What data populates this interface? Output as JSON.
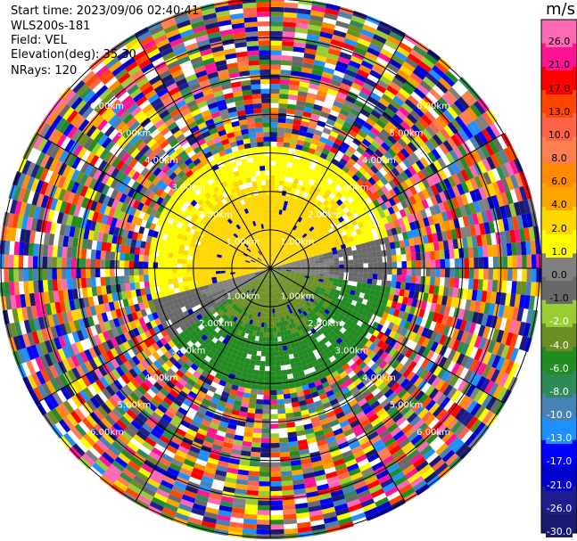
{
  "header": {
    "start_time": "Start time: 2023/09/06 02:40:41",
    "instrument": "WLS200s-181",
    "field": "Field: VEL",
    "elevation": "Elevation(deg): 35.30",
    "nrays": "NRays: 120"
  },
  "colorbar": {
    "unit": "m/s",
    "colors": [
      "#191970",
      "#1e1e8c",
      "#0000cd",
      "#0000ff",
      "#1e90ff",
      "#4682b4",
      "#2e8b57",
      "#228b22",
      "#6b8e23",
      "#9acd32",
      "#696969",
      "#808080",
      "#ffff00",
      "#ffd700",
      "#ffa500",
      "#ff8c00",
      "#ff7f50",
      "#ff6347",
      "#ff4500",
      "#ff0000",
      "#ff1493",
      "#ff69b4"
    ],
    "labels": [
      "-30.0",
      "-26.0",
      "-21.0",
      "-17.0",
      "-13.0",
      "-10.0",
      "-8.0",
      "-6.0",
      "-4.0",
      "-2.0",
      "-1.0",
      "0.0",
      "1.0",
      "2.0",
      "4.0",
      "6.0",
      "8.0",
      "10.0",
      "13.0",
      "17.0",
      "21.0",
      "26.0"
    ]
  },
  "chart_data": {
    "type": "ppi-polar",
    "field": "VEL",
    "nrays": 120,
    "max_range_km": 7,
    "range_rings_km": [
      1,
      2,
      3,
      4,
      5,
      6,
      7
    ],
    "ring_labels": [
      "1.00km",
      "2.00km",
      "3.00km",
      "4.00km",
      "5.00km",
      "6.00km"
    ],
    "clean_range_km": 3.2,
    "sectors": [
      {
        "az_start": 255,
        "az_end": 360,
        "velocity_ms": [
          1,
          4
        ],
        "note": "yellow/orange (away)"
      },
      {
        "az_start": 0,
        "az_end": 75,
        "velocity_ms": [
          1,
          4
        ],
        "note": "yellow/orange (away)"
      },
      {
        "az_start": 75,
        "az_end": 100,
        "velocity_ms": [
          -1,
          1
        ],
        "note": "grey (near zero)"
      },
      {
        "az_start": 235,
        "az_end": 255,
        "velocity_ms": [
          -1,
          1
        ],
        "note": "grey (near zero)"
      },
      {
        "az_start": 100,
        "az_end": 235,
        "velocity_ms": [
          -6,
          -2
        ],
        "note": "green (toward)"
      }
    ],
    "outer_region": "noise (random colors) beyond ~3.2 km"
  }
}
